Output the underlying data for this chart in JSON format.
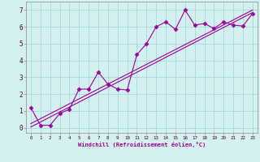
{
  "xlabel": "Windchill (Refroidissement éolien,°C)",
  "background_color": "#d4f0f0",
  "grid_color": "#aadddd",
  "line_color": "#990099",
  "xlim": [
    -0.5,
    23.5
  ],
  "ylim": [
    -0.3,
    7.5
  ],
  "x_ticks": [
    0,
    1,
    2,
    3,
    4,
    5,
    6,
    7,
    8,
    9,
    10,
    11,
    12,
    13,
    14,
    15,
    16,
    17,
    18,
    19,
    20,
    21,
    22,
    23
  ],
  "y_ticks": [
    0,
    1,
    2,
    3,
    4,
    5,
    6,
    7
  ],
  "data_x": [
    0,
    1,
    2,
    3,
    4,
    5,
    6,
    7,
    8,
    9,
    10,
    11,
    12,
    13,
    14,
    15,
    16,
    17,
    18,
    19,
    20,
    21,
    22,
    23
  ],
  "data_y": [
    1.2,
    0.15,
    0.15,
    0.85,
    1.1,
    2.3,
    2.3,
    3.3,
    2.6,
    2.3,
    2.25,
    4.35,
    5.0,
    6.0,
    6.3,
    5.85,
    7.0,
    6.1,
    6.2,
    5.9,
    6.3,
    6.1,
    6.05,
    6.8
  ],
  "reg_line1_x": [
    0,
    23
  ],
  "reg_line1_y": [
    0.05,
    6.85
  ],
  "reg_line2_x": [
    0,
    23
  ],
  "reg_line2_y": [
    0.25,
    7.0
  ],
  "marker": "D",
  "marker_size": 2.5,
  "line_width": 0.8,
  "tick_fontsize_x": 4.2,
  "tick_fontsize_y": 5.5,
  "xlabel_fontsize": 5.0
}
